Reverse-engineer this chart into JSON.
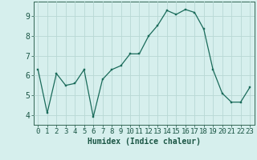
{
  "x": [
    0,
    1,
    2,
    3,
    4,
    5,
    6,
    7,
    8,
    9,
    10,
    11,
    12,
    13,
    14,
    15,
    16,
    17,
    18,
    19,
    20,
    21,
    22,
    23
  ],
  "y": [
    6.3,
    4.1,
    6.1,
    5.5,
    5.6,
    6.3,
    3.9,
    5.8,
    6.3,
    6.5,
    7.1,
    7.1,
    8.0,
    8.55,
    9.3,
    9.1,
    9.35,
    9.2,
    8.35,
    6.3,
    5.1,
    4.65,
    4.65,
    5.4
  ],
  "xlabel": "Humidex (Indice chaleur)",
  "ylim": [
    3.5,
    9.75
  ],
  "xlim": [
    -0.5,
    23.5
  ],
  "bg_color": "#d6efed",
  "grid_color": "#b8d8d4",
  "line_color": "#1a6b5a",
  "marker_color": "#1a6b5a",
  "axis_color": "#336655",
  "tick_label_color": "#1a5544",
  "xlabel_color": "#1a5544",
  "yticks": [
    4,
    5,
    6,
    7,
    8,
    9
  ],
  "xticks": [
    0,
    1,
    2,
    3,
    4,
    5,
    6,
    7,
    8,
    9,
    10,
    11,
    12,
    13,
    14,
    15,
    16,
    17,
    18,
    19,
    20,
    21,
    22,
    23
  ],
  "figsize": [
    3.2,
    2.0
  ],
  "dpi": 100,
  "xlabel_fontsize": 7,
  "tick_fontsize": 6.5
}
